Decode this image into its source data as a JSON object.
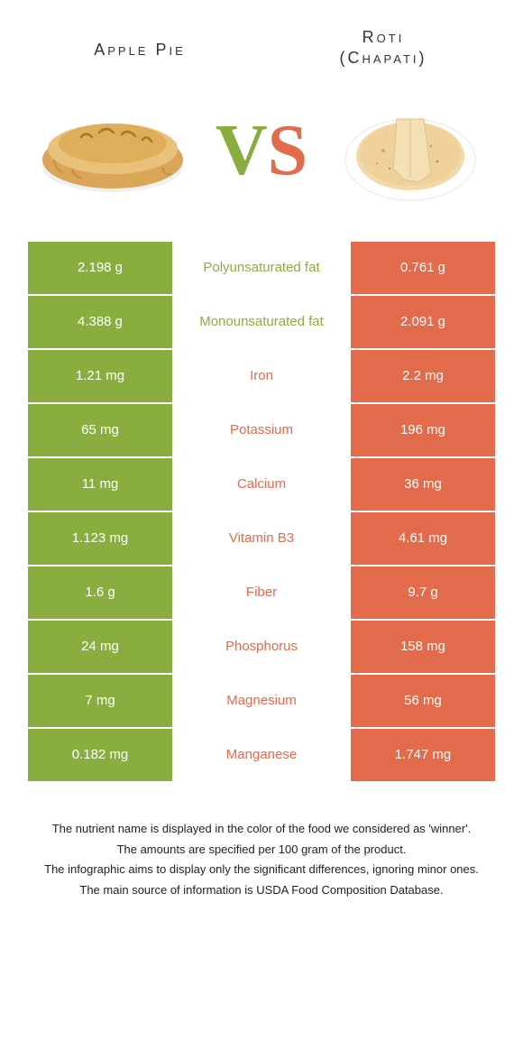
{
  "colors": {
    "green": "#8aad3f",
    "orange": "#e16b4a",
    "text": "#333333",
    "bg": "#ffffff"
  },
  "foodA": {
    "name": "Apple Pie",
    "color": "#8aad3f"
  },
  "foodB": {
    "name": "Roti",
    "subname": "(Chapati)",
    "color": "#e16b4a"
  },
  "vs": {
    "v": "V",
    "s": "S"
  },
  "rows": [
    {
      "left": "2.198 g",
      "label": "Polyunsaturated fat",
      "right": "0.761 g",
      "winner": "A"
    },
    {
      "left": "4.388 g",
      "label": "Monounsaturated fat",
      "right": "2.091 g",
      "winner": "A"
    },
    {
      "left": "1.21 mg",
      "label": "Iron",
      "right": "2.2 mg",
      "winner": "B"
    },
    {
      "left": "65 mg",
      "label": "Potassium",
      "right": "196 mg",
      "winner": "B"
    },
    {
      "left": "11 mg",
      "label": "Calcium",
      "right": "36 mg",
      "winner": "B"
    },
    {
      "left": "1.123 mg",
      "label": "Vitamin B3",
      "right": "4.61 mg",
      "winner": "B"
    },
    {
      "left": "1.6 g",
      "label": "Fiber",
      "right": "9.7 g",
      "winner": "B"
    },
    {
      "left": "24 mg",
      "label": "Phosphorus",
      "right": "158 mg",
      "winner": "B"
    },
    {
      "left": "7 mg",
      "label": "Magnesium",
      "right": "56 mg",
      "winner": "B"
    },
    {
      "left": "0.182 mg",
      "label": "Manganese",
      "right": "1.747 mg",
      "winner": "B"
    }
  ],
  "footnotes": [
    "The nutrient name is displayed in the color of the food we considered as 'winner'.",
    "The amounts are specified per 100 gram of the product.",
    "The infographic aims to display only the significant differences, ignoring minor ones.",
    "The main source of information is USDA Food Composition Database."
  ]
}
